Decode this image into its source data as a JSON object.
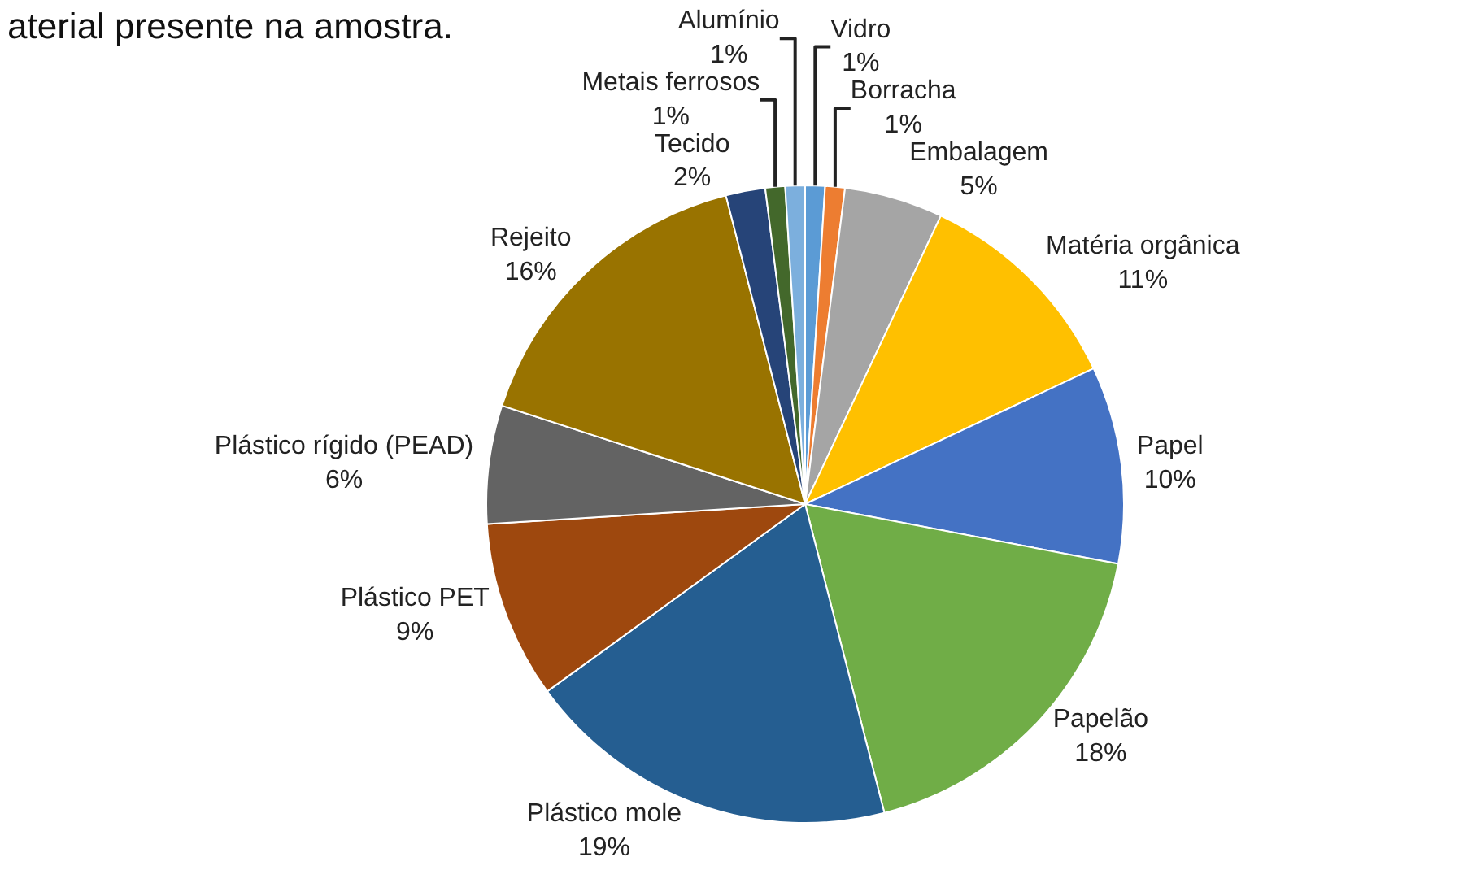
{
  "chart_data": {
    "type": "pie",
    "title": "aterial presente na amostra.",
    "categories": [
      "Vidro",
      "Borracha",
      "Embalagem",
      "Matéria orgânica",
      "Papel",
      "Papelão",
      "Plástico mole",
      "Plástico PET",
      "Plástico rígido (PEAD)",
      "Rejeito",
      "Tecido",
      "Metais ferrosos",
      "Alumínio"
    ],
    "values": [
      1,
      1,
      5,
      11,
      10,
      18,
      19,
      9,
      6,
      16,
      2,
      1,
      1
    ],
    "value_labels": [
      "1%",
      "1%",
      "5%",
      "11%",
      "10%",
      "18%",
      "19%",
      "9%",
      "6%",
      "16%",
      "2%",
      "1%",
      "1%"
    ],
    "colors": [
      "#5b9bd5",
      "#ed7d31",
      "#a5a5a5",
      "#ffc000",
      "#4472c4",
      "#70ad47",
      "#255e91",
      "#9e480e",
      "#636363",
      "#997300",
      "#264478",
      "#43682b",
      "#7cafdd"
    ],
    "legend": false
  }
}
